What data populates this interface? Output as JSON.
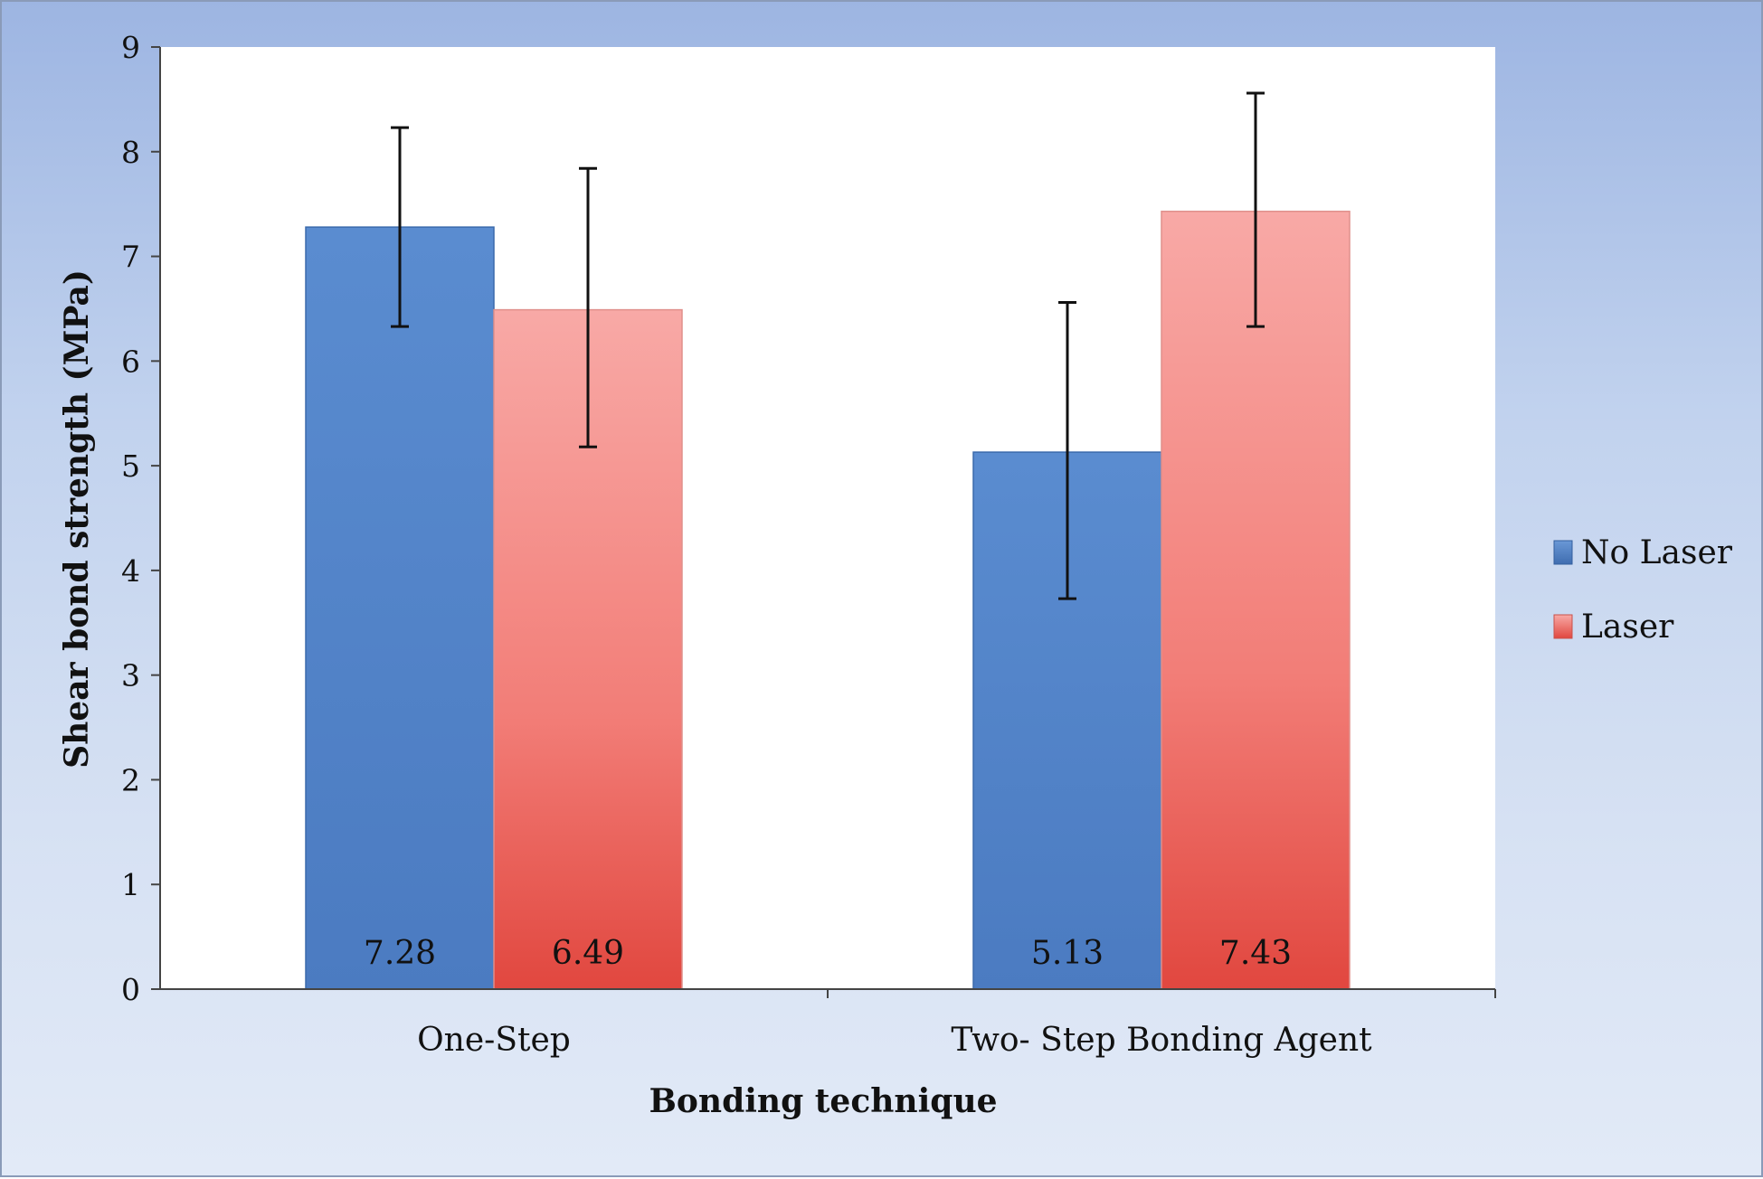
{
  "chart_data": {
    "type": "bar",
    "categories": [
      "One-Step",
      "Two- Step Bonding Agent"
    ],
    "series": [
      {
        "name": "No Laser",
        "values": [
          7.28,
          5.13
        ],
        "error_low": [
          6.33,
          3.73
        ],
        "error_high": [
          8.23,
          6.56
        ],
        "color": "#4f81c7"
      },
      {
        "name": "Laser",
        "values": [
          6.49,
          7.43
        ],
        "error_low": [
          5.18,
          6.33
        ],
        "error_high": [
          7.84,
          8.56
        ],
        "color": "#f0706a"
      }
    ],
    "data_labels": [
      [
        "7.28",
        "5.13"
      ],
      [
        "6.49",
        "7.43"
      ]
    ],
    "xlabel": "Bonding technique",
    "ylabel": "Shear bond strength (MPa)",
    "ylim": [
      0,
      9
    ],
    "yticks": [
      0,
      1,
      2,
      3,
      4,
      5,
      6,
      7,
      8,
      9
    ],
    "grid": false,
    "legend_position": "right"
  }
}
